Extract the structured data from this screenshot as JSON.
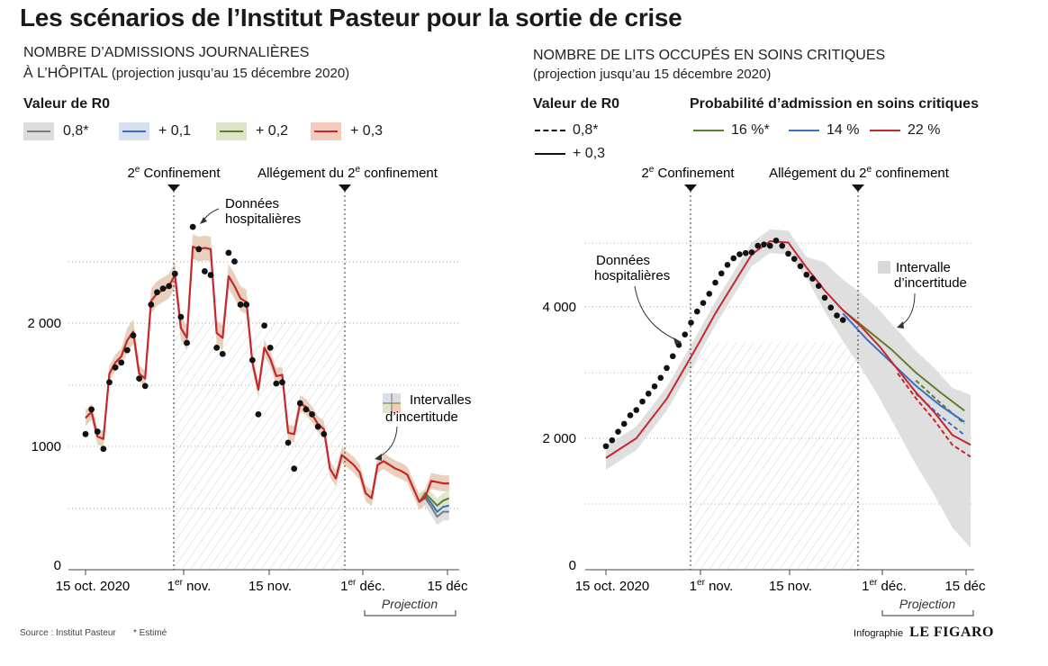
{
  "title": "Les scénarios de l’Institut Pasteur pour la sortie de crise",
  "left": {
    "subtitle_line1": "NOMBRE D’ADMISSIONS JOURNALIÈRES",
    "subtitle_line2": "À L’HÔPITAL",
    "subtitle_note": "(projection jusqu’au 15 décembre 2020)",
    "legend_title": "Valeur de R0",
    "legend": [
      {
        "label": "0,8*",
        "color": "#7a7a7a",
        "band": "#dcdcdc"
      },
      {
        "label": "+ 0,1",
        "color": "#3a6fc4",
        "band": "#d6e0ef"
      },
      {
        "label": "+ 0,2",
        "color": "#5d7f2b",
        "band": "#dde5c8"
      },
      {
        "label": "+ 0,3",
        "color": "#c6262e",
        "band": "#f2cbbd"
      }
    ]
  },
  "right": {
    "subtitle_line1": "NOMBRE DE LITS OCCUPÉS EN SOINS CRITIQUES",
    "subtitle_note": "(projection jusqu’au 15 décembre 2020)",
    "legend_r0_title": "Valeur de R0",
    "legend_r0": [
      {
        "label": "0,8*",
        "style": "dashed"
      },
      {
        "label": "+ 0,3",
        "style": "solid"
      }
    ],
    "legend_prob_title": "Probabilité d’admission en soins critiques",
    "legend_prob": [
      {
        "label": "16 %*",
        "color": "#5d7f2b"
      },
      {
        "label": "14 %",
        "color": "#3a6fc4"
      },
      {
        "label": "22 %",
        "color": "#c6262e"
      }
    ]
  },
  "chart_data": [
    {
      "type": "line",
      "title": "NOMBRE D’ADMISSIONS JOURNALIÈRES À L’HÔPITAL",
      "x_ticks": [
        "15 oct. 2020",
        "1er nov.",
        "15 nov.",
        "1er déc.",
        "15 déc"
      ],
      "y_ticks": [
        "0",
        "1000",
        "2 000"
      ],
      "ylim": [
        0,
        2800
      ],
      "events": [
        "2e Confinement",
        "Allégement du 2e confinement"
      ],
      "annotations": [
        "Données hospitalières",
        "Intervalles d’incertitude"
      ],
      "projection_label": "Projection",
      "observed_points": [
        [
          0,
          1100
        ],
        [
          1,
          1300
        ],
        [
          2,
          1120
        ],
        [
          3,
          980
        ],
        [
          4,
          1520
        ],
        [
          5,
          1640
        ],
        [
          6,
          1680
        ],
        [
          7,
          1780
        ],
        [
          8,
          1900
        ],
        [
          9,
          1550
        ],
        [
          10,
          1490
        ],
        [
          11,
          2150
        ],
        [
          12,
          2250
        ],
        [
          13,
          2280
        ],
        [
          14,
          2300
        ],
        [
          15,
          2400
        ],
        [
          16,
          2050
        ],
        [
          17,
          1840
        ],
        [
          18,
          2780
        ],
        [
          19,
          2600
        ],
        [
          20,
          2420
        ],
        [
          21,
          2390
        ],
        [
          22,
          1800
        ],
        [
          23,
          1750
        ],
        [
          24,
          2570
        ],
        [
          25,
          2500
        ],
        [
          26,
          2150
        ],
        [
          27,
          2150
        ],
        [
          28,
          1700
        ],
        [
          29,
          1260
        ],
        [
          30,
          1980
        ],
        [
          31,
          1800
        ],
        [
          32,
          1510
        ],
        [
          33,
          1520
        ],
        [
          34,
          1030
        ],
        [
          35,
          820
        ],
        [
          36,
          1350
        ],
        [
          37,
          1300
        ],
        [
          38,
          1260
        ],
        [
          39,
          1160
        ],
        [
          40,
          1100
        ]
      ],
      "series": [
        {
          "name": "+ 0,3",
          "x": [
            0,
            1,
            2,
            3,
            4,
            5,
            6,
            7,
            8,
            9,
            10,
            11,
            12,
            13,
            14,
            15,
            16,
            17,
            18,
            19,
            20,
            21,
            22,
            23,
            24,
            25,
            26,
            27,
            28,
            29,
            30,
            31,
            32,
            33,
            34,
            35,
            36,
            37,
            38,
            39,
            40,
            41,
            42,
            43,
            44,
            45,
            46,
            47,
            48,
            49,
            50,
            51,
            52,
            53,
            54,
            55,
            56,
            57,
            58,
            59,
            60,
            61
          ],
          "values": [
            1230,
            1280,
            1080,
            1060,
            1590,
            1680,
            1730,
            1860,
            1930,
            1590,
            1550,
            2180,
            2240,
            2270,
            2300,
            2390,
            1960,
            1880,
            2620,
            2600,
            2610,
            2600,
            1920,
            1880,
            2380,
            2300,
            2200,
            2170,
            1680,
            1460,
            1800,
            1710,
            1570,
            1580,
            1110,
            1100,
            1350,
            1320,
            1260,
            1180,
            1140,
            820,
            740,
            930,
            890,
            850,
            790,
            620,
            580,
            850,
            880,
            850,
            820,
            800,
            770,
            660,
            550,
            590,
            720,
            710,
            700,
            700
          ]
        },
        {
          "name": "+ 0,2",
          "values": [
            620,
            570,
            520,
            560,
            580
          ]
        },
        {
          "name": "+ 0,1",
          "values": [
            600,
            540,
            470,
            510,
            520
          ]
        },
        {
          "name": "0,8*",
          "values": [
            580,
            510,
            430,
            470,
            470
          ]
        }
      ]
    },
    {
      "type": "line",
      "title": "NOMBRE DE LITS OCCUPÉS EN SOINS CRITIQUES",
      "x_ticks": [
        "15 oct. 2020",
        "1er nov.",
        "15 nov.",
        "1er déc.",
        "15 déc"
      ],
      "y_ticks": [
        "0",
        "2 000",
        "4 000"
      ],
      "ylim": [
        0,
        5200
      ],
      "events": [
        "2e Confinement",
        "Allégement du 2e confinement"
      ],
      "annotations": [
        "Données hospitalières",
        "Intervalle d’incertitude"
      ],
      "projection_label": "Projection",
      "observed_points": [
        [
          0,
          1880
        ],
        [
          1,
          1970
        ],
        [
          2,
          2100
        ],
        [
          3,
          2220
        ],
        [
          4,
          2350
        ],
        [
          5,
          2430
        ],
        [
          6,
          2560
        ],
        [
          7,
          2680
        ],
        [
          8,
          2790
        ],
        [
          9,
          2920
        ],
        [
          10,
          3070
        ],
        [
          11,
          3250
        ],
        [
          12,
          3420
        ],
        [
          13,
          3580
        ],
        [
          14,
          3760
        ],
        [
          15,
          3930
        ],
        [
          16,
          4060
        ],
        [
          17,
          4200
        ],
        [
          18,
          4370
        ],
        [
          19,
          4510
        ],
        [
          20,
          4640
        ],
        [
          21,
          4740
        ],
        [
          22,
          4800
        ],
        [
          23,
          4820
        ],
        [
          24,
          4830
        ],
        [
          25,
          4930
        ],
        [
          26,
          4950
        ],
        [
          27,
          4930
        ],
        [
          28,
          5010
        ],
        [
          29,
          4930
        ],
        [
          30,
          4810
        ],
        [
          31,
          4730
        ],
        [
          32,
          4620
        ],
        [
          33,
          4490
        ],
        [
          34,
          4430
        ],
        [
          35,
          4320
        ],
        [
          36,
          4140
        ],
        [
          37,
          3990
        ],
        [
          38,
          3870
        ],
        [
          39,
          3800
        ]
      ],
      "series": [
        {
          "name": "22 %",
          "x": [
            0,
            5,
            10,
            15,
            18,
            20,
            22,
            24,
            27,
            30,
            33,
            36,
            39,
            42,
            45,
            48,
            51,
            54,
            57,
            60
          ],
          "values": [
            1700,
            2000,
            2600,
            3400,
            3900,
            4200,
            4500,
            4800,
            5000,
            4980,
            4600,
            4250,
            3950,
            3700,
            3400,
            3050,
            2700,
            2400,
            2050,
            1900
          ]
        },
        {
          "name": "16 %*",
          "values": [
            3950,
            3650,
            3350,
            3000,
            2700,
            2420
          ]
        },
        {
          "name": "14 %",
          "values": [
            3900,
            3500,
            3150,
            2800,
            2500,
            2250
          ]
        }
      ]
    }
  ],
  "footer": {
    "source": "Source : Institut Pasteur",
    "note": "* Estimé",
    "credit_prefix": "Infographie",
    "credit_brand": "LE FIGARO"
  }
}
